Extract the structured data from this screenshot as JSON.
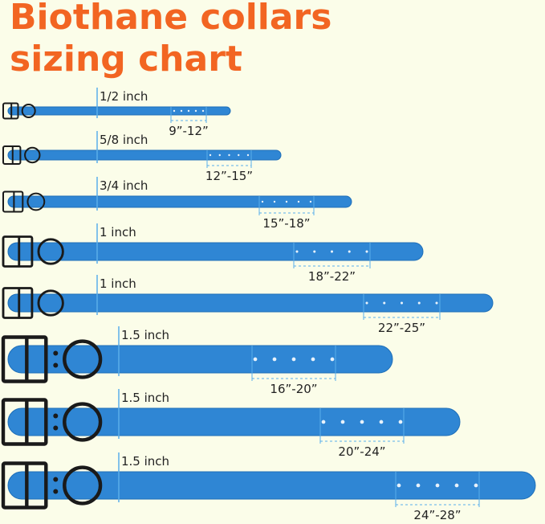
{
  "header": {
    "title_line1": "Biothane collars",
    "title_line2": "sizing chart"
  },
  "collars": [
    {
      "width": "1/2 inch",
      "range": "9”-12”"
    },
    {
      "width": "5/8 inch",
      "range": "12”-15”"
    },
    {
      "width": "3/4 inch",
      "range": "15”-18”"
    },
    {
      "width": "1 inch",
      "range": "18”-22”"
    },
    {
      "width": "1 inch",
      "range": "22”-25”"
    },
    {
      "width": "1.5 inch",
      "range": "16”-20”"
    },
    {
      "width": "1.5 inch",
      "range": "20”-24”"
    },
    {
      "width": "1.5 inch",
      "range": "24”-28”"
    }
  ]
}
